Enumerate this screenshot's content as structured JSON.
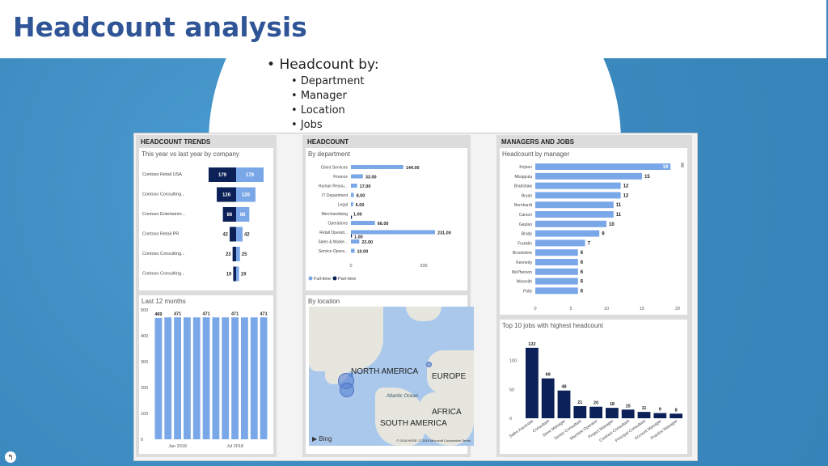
{
  "title": "Headcount analysis",
  "bullets": {
    "main": "Headcount by:",
    "sub": [
      "Department",
      "Manager",
      "Location",
      "Jobs"
    ]
  },
  "panels": {
    "trends": {
      "header": "HEADCOUNT TRENDS",
      "card1_title": "This year vs last year by company",
      "card2_title": "Last 12 months"
    },
    "headcount": {
      "header": "HEADCOUNT",
      "card1_title": "By department",
      "card2_title": "By location",
      "legend": [
        "Full-time",
        "Part-time"
      ]
    },
    "managers": {
      "header": "MANAGERS AND JOBS",
      "card1_title": "Headcount by manager",
      "card2_title": "Top 10 jobs with highest headcount"
    }
  },
  "map": {
    "labels": [
      "NORTH AMERICA",
      "EUROPE",
      "AFRICA",
      "SOUTH AMERICA",
      "Atlantic Ocean"
    ],
    "bing": "Bing",
    "copyright": "© 2018 HERE, © 2018 Microsoft Corporation Terms"
  },
  "colors": {
    "fulltime": "#7aa7e8",
    "parttime": "#0b2157",
    "brand": "#2f5597"
  },
  "chart_data": [
    {
      "type": "bar",
      "title": "This year vs last year by company",
      "categories": [
        "Contoso Retail USA",
        "Contoso Consulting...",
        "Contoso Entertainm...",
        "Contoso Retail PR",
        "Contoso Consulting...",
        "Contoso Consulting..."
      ],
      "series": [
        {
          "name": "",
          "values": [
            179,
            126,
            86,
            42,
            23,
            19
          ]
        },
        {
          "name": "",
          "values": [
            179,
            126,
            86,
            42,
            25,
            19
          ]
        }
      ]
    },
    {
      "type": "bar",
      "title": "Last 12 months",
      "x_ticks": [
        "Jan 2018",
        "Jul 2018"
      ],
      "y_ticks": [
        "0",
        "100",
        "200",
        "300",
        "400",
        "500"
      ],
      "ylim": [
        0,
        500
      ],
      "values": [
        469,
        471,
        471,
        471,
        471,
        471,
        471,
        471,
        471,
        471,
        471,
        471
      ],
      "data_labels": [
        "469",
        "",
        "471",
        "",
        "",
        "471",
        "",
        "",
        "471",
        "",
        "",
        "471"
      ]
    },
    {
      "type": "bar",
      "title": "By department",
      "categories": [
        "Client Services",
        "Finance",
        "Human Resou...",
        "IT Department",
        "Legal",
        "Merchandising",
        "Operations",
        "Retail Operati...",
        "Sales & Marke...",
        "Service Opera..."
      ],
      "series": [
        {
          "name": "Full-time",
          "values": [
            144,
            33,
            17,
            8,
            6,
            0,
            66,
            231,
            23,
            10
          ]
        },
        {
          "name": "Part-time",
          "values": [
            0,
            0,
            0,
            0,
            0,
            1,
            0,
            1,
            0,
            0
          ]
        }
      ],
      "data_labels": [
        "144.00",
        "33.00",
        "17.00",
        "8.00",
        "6.00",
        "1.00",
        "66.00",
        "231.00",
        "23.00",
        "10.00"
      ],
      "extra_label": "1.00",
      "x_ticks": [
        "0",
        "200"
      ],
      "xlim": [
        0,
        260
      ]
    },
    {
      "type": "bar",
      "title": "Headcount by manager",
      "categories": [
        "Krijnen",
        "Mkoppula",
        "Bradshaw",
        "Bryan",
        "Bernhardt",
        "Carson",
        "Gaytan",
        "Brady",
        "Franklin",
        "Brookshire",
        "Kennedy",
        "McPherson",
        "Wesmith",
        "Polly"
      ],
      "values": [
        19,
        15,
        12,
        12,
        11,
        11,
        10,
        9,
        7,
        6,
        6,
        6,
        6,
        6
      ],
      "x_ticks": [
        "0",
        "5",
        "10",
        "15",
        "20"
      ],
      "xlim": [
        0,
        20
      ]
    },
    {
      "type": "bar",
      "title": "Top 10 jobs with highest headcount",
      "categories": [
        "Sales Associate",
        "Consultant",
        "Store Manager",
        "Senior Consultant",
        "Machine Operator",
        "Project Manager",
        "Contract Consultant",
        "Principal Consultant",
        "Account Manager",
        "Practice Manager"
      ],
      "values": [
        122,
        69,
        48,
        21,
        20,
        18,
        15,
        11,
        9,
        8
      ],
      "y_ticks": [
        "0",
        "50",
        "100"
      ],
      "ylim": [
        0,
        140
      ]
    }
  ]
}
